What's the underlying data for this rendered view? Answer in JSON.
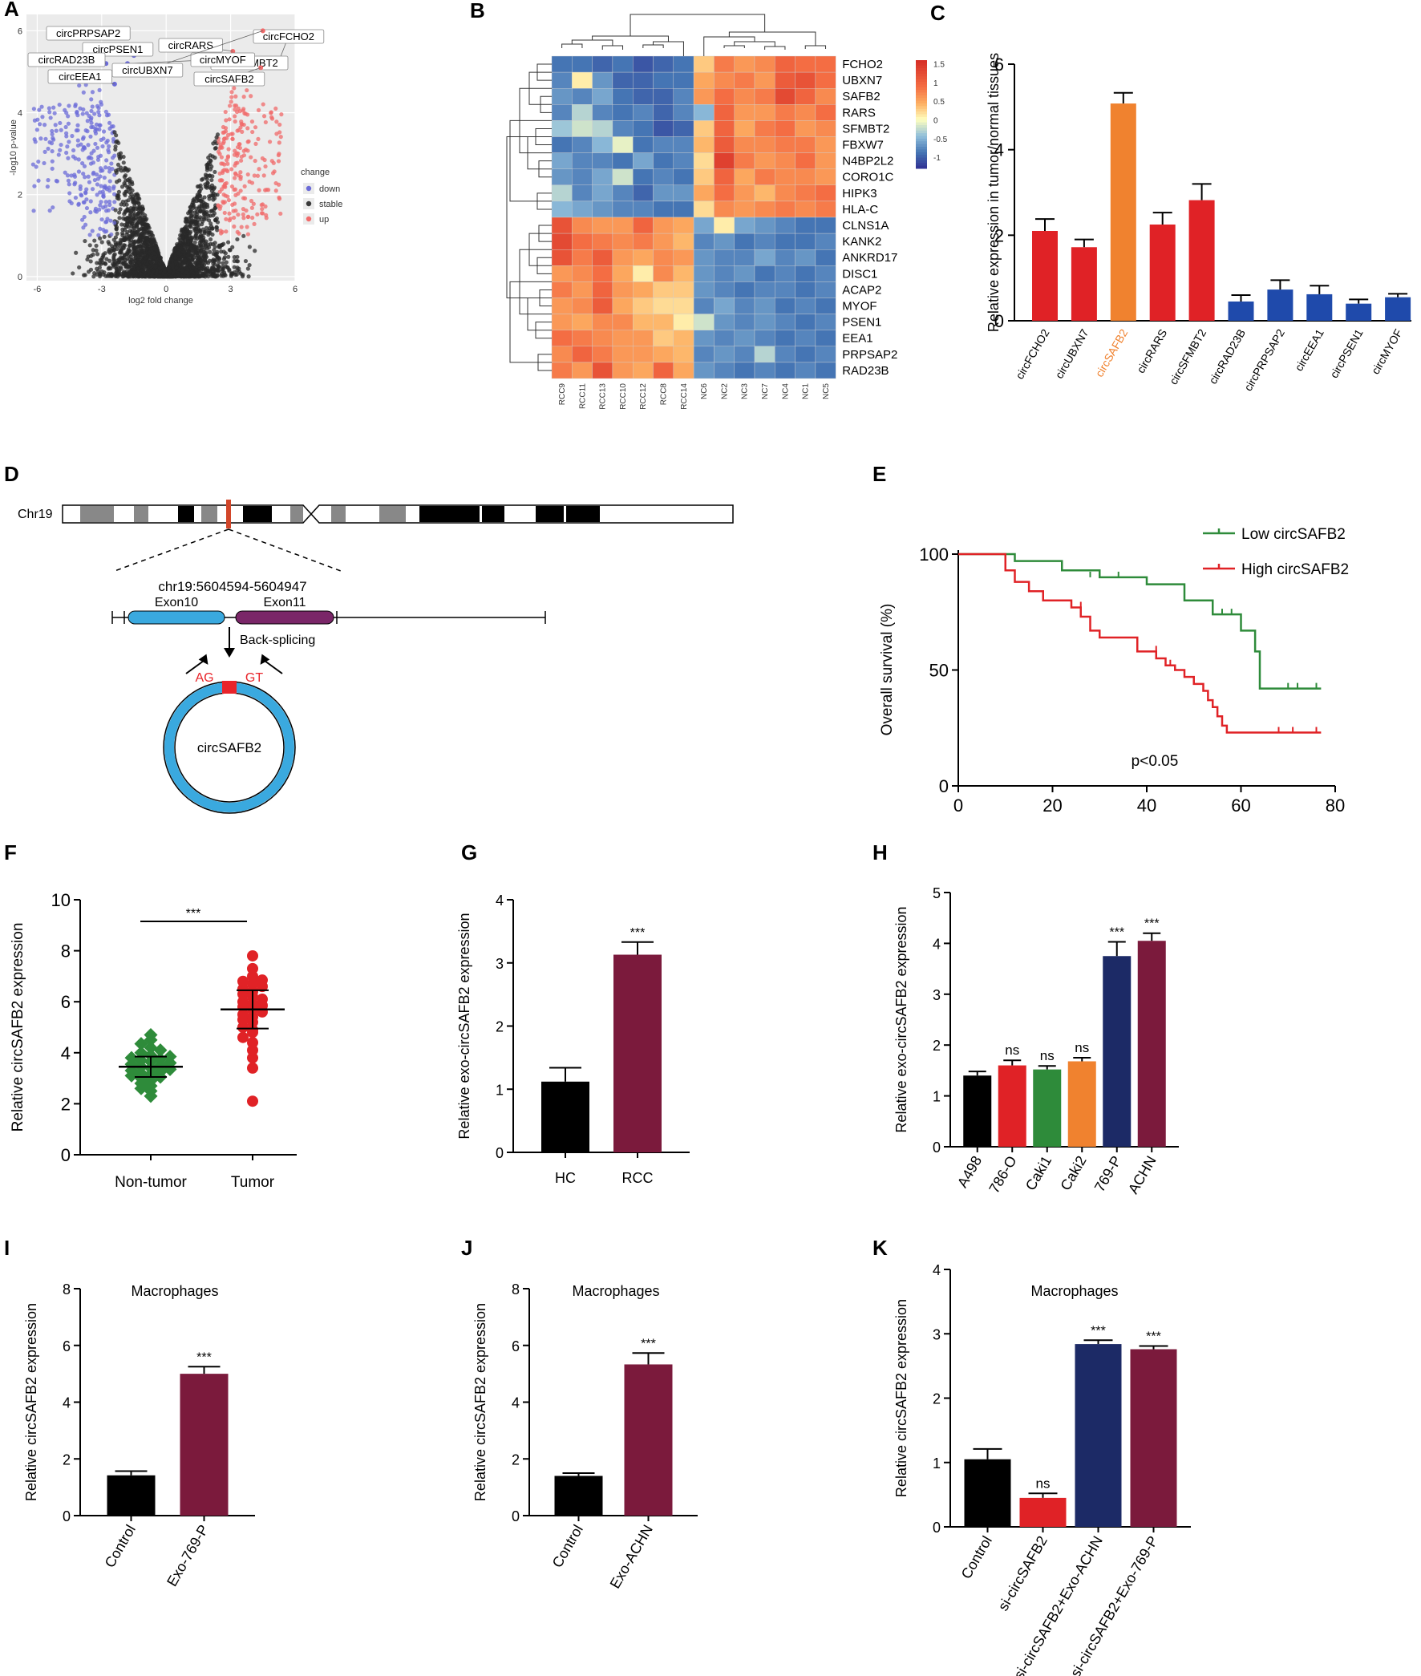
{
  "panels": {
    "A": {
      "label": "A",
      "type": "scatter",
      "title": "",
      "xlabel": "log2 fold change",
      "ylabel": "-log10 p-value",
      "xlim": [
        -6.5,
        6
      ],
      "ylim": [
        -0.1,
        6.4
      ],
      "xticks": [
        -6,
        -3,
        0,
        3,
        6
      ],
      "yticks": [
        0,
        2,
        4,
        6
      ],
      "legend": {
        "title": "change",
        "items": [
          {
            "name": "down",
            "color": "#6b6bd8"
          },
          {
            "name": "stable",
            "color": "#3a3a3a"
          },
          {
            "name": "up",
            "color": "#f26b6b"
          }
        ]
      },
      "highlighted": [
        {
          "name": "circPRPSAP2",
          "x": -3.2,
          "y": 6.0
        },
        {
          "name": "circPSEN1",
          "x": -1.5,
          "y": 5.4
        },
        {
          "name": "circRAD23B",
          "x": -2.8,
          "y": 5.2
        },
        {
          "name": "circEEA1",
          "x": -2.4,
          "y": 4.7
        },
        {
          "name": "circMYOF",
          "x": -1.8,
          "y": 5.2
        },
        {
          "name": "circSFMBT2",
          "x": 2.6,
          "y": 5.4
        },
        {
          "name": "circRARS",
          "x": 3.1,
          "y": 5.5
        },
        {
          "name": "circUBXN7",
          "x": 4.5,
          "y": 6.0
        },
        {
          "name": "circFCHO2",
          "x": 5.2,
          "y": 5.2
        },
        {
          "name": "circSAFB2",
          "x": 4.4,
          "y": 5.1
        }
      ]
    },
    "B": {
      "label": "B",
      "type": "heatmap",
      "rows": [
        "FCHO2",
        "UBXN7",
        "SAFB2",
        "RARS",
        "SFMBT2",
        "FBXW7",
        "N4BP2L2",
        "CORO1C",
        "HIPK3",
        "HLA-C",
        "CLNS1A",
        "KANK2",
        "ANKRD17",
        "DISC1",
        "ACAP2",
        "MYOF",
        "PSEN1",
        "EEA1",
        "PRPSAP2",
        "RAD23B"
      ],
      "cols": [
        "RCC9",
        "RCC11",
        "RCC13",
        "RCC10",
        "RCC12",
        "RCC8",
        "RCC14",
        "NC6",
        "NC2",
        "NC3",
        "NC7",
        "NC4",
        "NC1",
        "NC5"
      ],
      "colorbar": {
        "ticks": [
          "1.5",
          "1",
          "0.5",
          "0",
          "-0.5",
          "-1"
        ],
        "range": [
          -1.3,
          1.6
        ]
      },
      "values": [
        [
          -0.9,
          -0.9,
          -1.0,
          -0.9,
          -1.1,
          -1.0,
          -0.9,
          0.3,
          0.8,
          0.6,
          0.7,
          1.0,
          0.9,
          0.9
        ],
        [
          -0.8,
          0.1,
          -0.7,
          -1.0,
          -1.0,
          -0.9,
          -0.9,
          0.5,
          0.7,
          0.8,
          0.6,
          1.1,
          1.2,
          0.9
        ],
        [
          -0.7,
          -0.8,
          -0.6,
          -0.9,
          -1.0,
          -1.0,
          -0.8,
          0.6,
          0.9,
          0.7,
          0.8,
          1.3,
          1.0,
          0.7
        ],
        [
          -0.8,
          -0.3,
          -0.8,
          -0.9,
          -0.8,
          -1.0,
          -0.8,
          -0.5,
          1.0,
          0.6,
          0.6,
          0.8,
          0.7,
          0.9
        ],
        [
          -0.4,
          -0.2,
          -0.3,
          -0.8,
          -0.9,
          -1.1,
          -1.0,
          0.3,
          1.0,
          0.5,
          0.8,
          0.9,
          0.6,
          0.7
        ],
        [
          -0.9,
          -0.8,
          -0.5,
          -0.1,
          -0.9,
          -0.8,
          -0.8,
          0.4,
          1.1,
          0.7,
          0.7,
          0.8,
          0.8,
          0.6
        ],
        [
          -0.6,
          -0.8,
          -0.8,
          -0.9,
          -0.6,
          -0.9,
          -0.8,
          0.2,
          1.4,
          0.8,
          0.6,
          0.7,
          0.9,
          0.6
        ],
        [
          -0.7,
          -0.8,
          -0.6,
          -0.2,
          -0.9,
          -0.8,
          -0.9,
          0.3,
          1.0,
          0.5,
          0.8,
          0.7,
          0.7,
          0.6
        ],
        [
          -0.3,
          -0.8,
          -0.6,
          -0.8,
          -1.0,
          -0.7,
          -0.7,
          0.5,
          0.9,
          0.6,
          0.4,
          0.7,
          0.8,
          0.9
        ],
        [
          -0.5,
          -0.6,
          -0.7,
          -0.8,
          -0.8,
          -0.9,
          -0.9,
          0.2,
          0.7,
          0.6,
          0.7,
          0.8,
          0.7,
          0.8
        ],
        [
          1.2,
          0.7,
          0.6,
          0.6,
          1.0,
          0.6,
          0.5,
          -0.6,
          0.1,
          -0.6,
          -0.7,
          -0.8,
          -0.9,
          -0.9
        ],
        [
          1.3,
          0.9,
          0.8,
          0.7,
          0.8,
          0.6,
          0.4,
          -0.8,
          -0.7,
          -0.9,
          -0.8,
          -0.9,
          -0.9,
          -0.8
        ],
        [
          1.2,
          0.8,
          1.1,
          0.6,
          0.5,
          0.7,
          0.6,
          -0.7,
          -0.8,
          -0.8,
          -0.6,
          -0.8,
          -0.7,
          -0.9
        ],
        [
          0.6,
          0.7,
          0.9,
          0.5,
          0.1,
          0.7,
          0.4,
          -0.7,
          -0.8,
          -0.7,
          -0.9,
          -0.8,
          -0.9,
          -0.8
        ],
        [
          0.8,
          0.6,
          1.0,
          0.6,
          0.5,
          0.3,
          0.3,
          -0.7,
          -0.8,
          -0.9,
          -0.8,
          -0.8,
          -0.9,
          -0.8
        ],
        [
          0.6,
          0.7,
          1.1,
          0.5,
          0.3,
          0.2,
          0.2,
          -0.8,
          -0.6,
          -0.8,
          -0.7,
          -0.9,
          -0.8,
          -0.9
        ],
        [
          0.6,
          0.5,
          0.7,
          0.7,
          0.4,
          0.4,
          0.1,
          -0.2,
          -0.7,
          -0.8,
          -0.7,
          -0.8,
          -0.9,
          -0.8
        ],
        [
          0.9,
          0.8,
          0.7,
          0.6,
          0.6,
          0.3,
          0.4,
          -0.7,
          -0.8,
          -0.7,
          -0.8,
          -0.9,
          -0.8,
          -0.9
        ],
        [
          0.7,
          1.0,
          0.8,
          0.6,
          0.6,
          0.5,
          0.4,
          -0.8,
          -0.7,
          -0.8,
          -0.3,
          -0.8,
          -0.9,
          -0.8
        ],
        [
          0.8,
          0.6,
          1.2,
          0.6,
          0.5,
          1.0,
          0.5,
          -0.7,
          -0.8,
          -0.9,
          -0.8,
          -0.9,
          -0.8,
          -0.9
        ]
      ]
    },
    "C": {
      "label": "C",
      "type": "bar",
      "ylabel": "Relative expression in tumor/normal tissues",
      "ylim": [
        0,
        6
      ],
      "yticks": [
        0,
        2,
        4,
        6
      ],
      "categories": [
        "circFCHO2",
        "circUBXN7",
        "circSAFB2",
        "circRARS",
        "circSFMBT2",
        "circRAD23B",
        "circPRPSAP2",
        "circEEA1",
        "circPSEN1",
        "circMYOF"
      ],
      "values": [
        2.1,
        1.72,
        5.08,
        2.25,
        2.82,
        0.45,
        0.73,
        0.62,
        0.4,
        0.55
      ],
      "errors": [
        0.28,
        0.18,
        0.25,
        0.28,
        0.38,
        0.15,
        0.22,
        0.2,
        0.1,
        0.08
      ],
      "colors": [
        "#e02226",
        "#e02226",
        "#f0822f",
        "#e02226",
        "#e02226",
        "#1f4aab",
        "#1f4aab",
        "#1f4aab",
        "#1f4aab",
        "#1f4aab"
      ],
      "highlight_color": "#f0822f"
    },
    "D": {
      "label": "D",
      "type": "diagram",
      "chromosome": "Chr19",
      "coords": "chr19:5604594-5604947",
      "exon1": "Exon10",
      "exon2": "Exon11",
      "arrow_label": "Back-splicing",
      "left_site": "AG",
      "right_site": "GT",
      "circle_label": "circSAFB2",
      "colors": {
        "exon1": "#3aa9df",
        "exon2": "#7a2668",
        "marker": "#d2462a",
        "circle": "#3aa9df",
        "junction": "#e8242a"
      }
    },
    "E": {
      "label": "E",
      "type": "line",
      "ylabel": "Overall survival (%)",
      "xlim": [
        0,
        80
      ],
      "ylim": [
        0,
        100
      ],
      "xticks": [
        0,
        20,
        40,
        60,
        80
      ],
      "yticks": [
        0,
        50,
        100
      ],
      "annotation": "p<0.05",
      "series": [
        {
          "name": "Low circSAFB2",
          "color": "#2e8b3a",
          "x": [
            0,
            10,
            12,
            20,
            22,
            28,
            30,
            38,
            40,
            46,
            48,
            52,
            54,
            58,
            60,
            62,
            63,
            64,
            77
          ],
          "y": [
            100,
            100,
            97,
            97,
            93,
            93,
            90,
            90,
            87,
            87,
            80,
            80,
            74,
            74,
            67,
            67,
            58,
            42,
            42
          ]
        },
        {
          "name": "High circSAFB2",
          "color": "#e02226",
          "x": [
            0,
            8,
            10,
            12,
            15,
            18,
            22,
            24,
            26,
            28,
            30,
            34,
            38,
            40,
            42,
            44,
            46,
            48,
            50,
            52,
            53,
            54,
            55,
            56,
            57,
            60,
            77
          ],
          "y": [
            100,
            100,
            93,
            88,
            84,
            80,
            80,
            77,
            73,
            67,
            64,
            64,
            58,
            58,
            55,
            52,
            50,
            47,
            44,
            41,
            37,
            34,
            30,
            26,
            23,
            23,
            23
          ]
        }
      ]
    },
    "F": {
      "label": "F",
      "type": "scatter",
      "ylabel": "Relative circSAFB2 expression",
      "categories": [
        "Non-tumor",
        "Tumor"
      ],
      "ylim": [
        0,
        10
      ],
      "yticks": [
        0,
        2,
        4,
        6,
        8,
        10
      ],
      "sig": "***",
      "groups": [
        {
          "name": "Non-tumor",
          "color": "#2e8b3a",
          "mean": 3.45,
          "sd": 0.4,
          "points": [
            2.3,
            2.5,
            2.6,
            2.7,
            2.8,
            2.9,
            3.0,
            3.05,
            3.1,
            3.15,
            3.2,
            3.25,
            3.3,
            3.35,
            3.4,
            3.45,
            3.5,
            3.55,
            3.6,
            3.65,
            3.7,
            3.75,
            3.8,
            3.85,
            3.9,
            4.0,
            4.1,
            4.2,
            4.35,
            4.5,
            4.7
          ]
        },
        {
          "name": "Tumor",
          "color": "#e02226",
          "mean": 5.7,
          "sd": 0.75,
          "points": [
            2.1,
            3.4,
            3.8,
            4.1,
            4.4,
            4.6,
            4.8,
            4.9,
            5.0,
            5.2,
            5.3,
            5.4,
            5.5,
            5.6,
            5.7,
            5.8,
            5.85,
            5.9,
            6.0,
            6.1,
            6.2,
            6.3,
            6.4,
            6.5,
            6.6,
            6.7,
            6.8,
            6.85,
            7.0,
            7.3,
            7.8
          ]
        }
      ]
    },
    "G": {
      "label": "G",
      "type": "bar",
      "ylabel": "Relative exo-circSAFB2 expression",
      "ylim": [
        0,
        4
      ],
      "yticks": [
        0,
        1,
        2,
        3,
        4
      ],
      "categories": [
        "HC",
        "RCC"
      ],
      "values": [
        1.12,
        3.13
      ],
      "errors": [
        0.22,
        0.2
      ],
      "colors": [
        "#000000",
        "#7b1a3c"
      ],
      "sig": [
        "",
        "***"
      ]
    },
    "H": {
      "label": "H",
      "type": "bar",
      "ylabel": "Relative exo-circSAFB2 expression",
      "ylim": [
        0,
        5
      ],
      "yticks": [
        0,
        1,
        2,
        3,
        4,
        5
      ],
      "categories": [
        "A498",
        "786-O",
        "Caki1",
        "Caki2",
        "769-P",
        "ACHN"
      ],
      "values": [
        1.4,
        1.6,
        1.52,
        1.68,
        3.75,
        4.05
      ],
      "errors": [
        0.08,
        0.1,
        0.07,
        0.07,
        0.28,
        0.15
      ],
      "colors": [
        "#000000",
        "#e02226",
        "#2e8b3a",
        "#f0822f",
        "#1c2a66",
        "#7b1a3c"
      ],
      "sig": [
        "",
        "ns",
        "ns",
        "ns",
        "***",
        "***"
      ]
    },
    "I": {
      "label": "I",
      "type": "bar",
      "title": "Macrophages",
      "ylabel": "Relative circSAFB2 expression",
      "ylim": [
        0,
        8
      ],
      "yticks": [
        0,
        2,
        4,
        6,
        8
      ],
      "categories": [
        "Control",
        "Exo-769-P"
      ],
      "values": [
        1.42,
        5.0
      ],
      "errors": [
        0.15,
        0.25
      ],
      "colors": [
        "#000000",
        "#7b1a3c"
      ],
      "sig": [
        "",
        "***"
      ]
    },
    "J": {
      "label": "J",
      "type": "bar",
      "title": "Macrophages",
      "ylabel": "Relative circSAFB2 expression",
      "ylim": [
        0,
        8
      ],
      "yticks": [
        0,
        2,
        4,
        6,
        8
      ],
      "categories": [
        "Control",
        "Exo-ACHN"
      ],
      "values": [
        1.4,
        5.33
      ],
      "errors": [
        0.1,
        0.4
      ],
      "colors": [
        "#000000",
        "#7b1a3c"
      ],
      "sig": [
        "",
        "***"
      ]
    },
    "K": {
      "label": "K",
      "type": "bar",
      "title": "Macrophages",
      "ylabel": "Relative circSAFB2 expression",
      "ylim": [
        0,
        4
      ],
      "yticks": [
        0,
        1,
        2,
        3,
        4
      ],
      "categories": [
        "Control",
        "si-circSAFB2",
        "si-circSAFB2+Exo-ACHN",
        "si-circSAFB2+Exo-769-P"
      ],
      "values": [
        1.05,
        0.45,
        2.84,
        2.76
      ],
      "errors": [
        0.16,
        0.07,
        0.06,
        0.05
      ],
      "colors": [
        "#000000",
        "#e02226",
        "#1c2a66",
        "#7b1a3c"
      ],
      "sig": [
        "",
        "ns",
        "***",
        "***"
      ]
    }
  }
}
